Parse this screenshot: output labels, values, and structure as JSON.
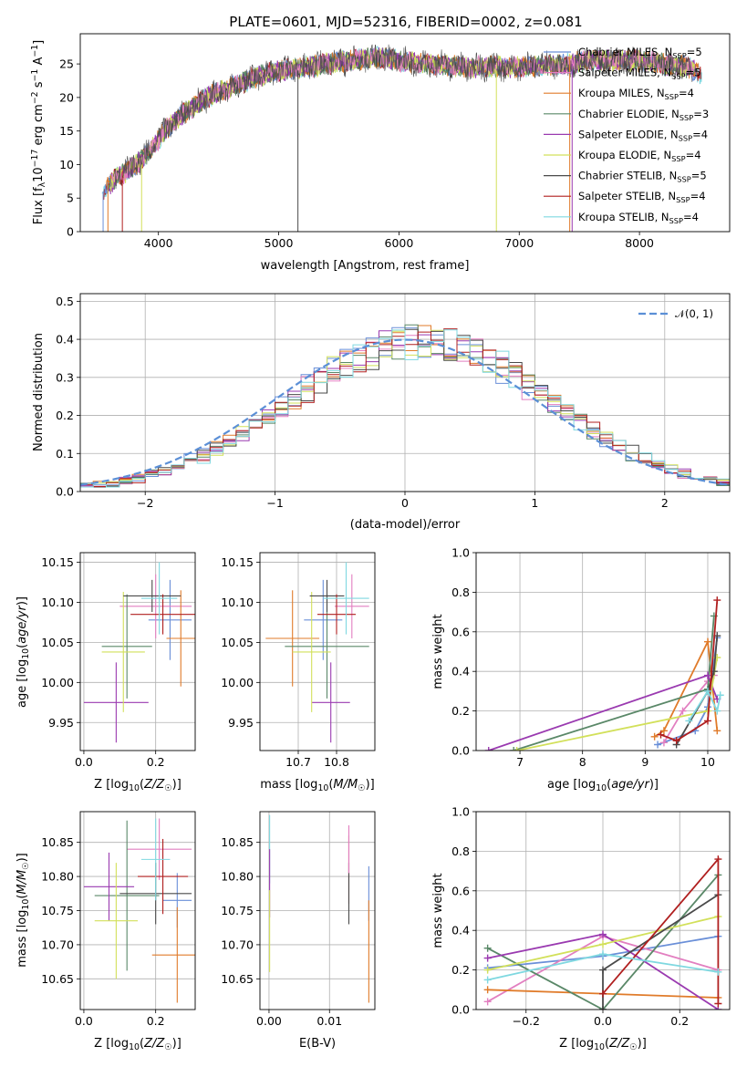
{
  "title": "PLATE=0601, MJD=52316, FIBERID=0002, z=0.081",
  "colors": {
    "Chabrier MILES": "#6a8fd8",
    "Salpeter MILES": "#e27fc0",
    "Kroupa MILES": "#e07b2a",
    "Chabrier ELODIE": "#5a8868",
    "Salpeter ELODIE": "#9a3ab0",
    "Kroupa ELODIE": "#d2e05a",
    "Chabrier STELIB": "#4a4a4a",
    "Salpeter STELIB": "#b01f1f",
    "Kroupa STELIB": "#7fd8e0"
  },
  "chart_data": [
    {
      "id": "spectrum",
      "type": "line",
      "xlabel": "wavelength [Angstrom, rest frame]",
      "ylabel": "Flux [f_λ 10^-17 erg cm^-2 s^-1 A^-1]",
      "xlim": [
        3350,
        8750
      ],
      "ylim": [
        0,
        29.5
      ],
      "xticks": [
        4000,
        5000,
        6000,
        7000,
        8000
      ],
      "yticks": [
        0,
        5,
        10,
        15,
        20,
        25
      ],
      "continuum": {
        "x": [
          3530,
          3650,
          3750,
          3850,
          3950,
          4050,
          4200,
          4400,
          4600,
          4800,
          5000,
          5200,
          5400,
          5600,
          5800,
          6000,
          6200,
          6400,
          6600,
          6800,
          7000,
          7200,
          7400,
          7600,
          7800,
          8000,
          8200,
          8400,
          8520
        ],
        "y": [
          6.0,
          8.0,
          9.2,
          10.5,
          12.5,
          15.0,
          17.5,
          20.0,
          21.5,
          23.0,
          24.0,
          24.5,
          25.0,
          25.5,
          26.0,
          25.5,
          25.0,
          24.8,
          24.5,
          24.6,
          24.5,
          24.8,
          25.0,
          25.5,
          25.5,
          25.5,
          25.0,
          24.5,
          23.5
        ]
      },
      "legend_loc": "right",
      "series": [
        {
          "name": "Chabrier MILES",
          "nssp": "5"
        },
        {
          "name": "Salpeter MILES",
          "nssp": "5"
        },
        {
          "name": "Kroupa MILES",
          "nssp": "4"
        },
        {
          "name": "Chabrier ELODIE",
          "nssp": "3"
        },
        {
          "name": "Salpeter ELODIE",
          "nssp": "4"
        },
        {
          "name": "Kroupa ELODIE",
          "nssp": "4"
        },
        {
          "name": "Chabrier STELIB",
          "nssp": "5"
        },
        {
          "name": "Salpeter STELIB",
          "nssp": "4"
        },
        {
          "name": "Kroupa STELIB",
          "nssp": "4"
        }
      ]
    },
    {
      "id": "residuals",
      "type": "line",
      "xlabel": "(data-model)/error",
      "ylabel": "Normed distribution",
      "xlim": [
        -2.5,
        2.5
      ],
      "ylim": [
        0,
        0.52
      ],
      "xticks": [
        -2,
        -1,
        0,
        1,
        2
      ],
      "yticks": [
        0.0,
        0.1,
        0.2,
        0.3,
        0.4,
        0.5
      ],
      "grid": true,
      "legend": "𝒩(0, 1)",
      "legend_loc": "top-right",
      "bin_width": 0.1
    },
    {
      "id": "age_vs_Z",
      "type": "scatter",
      "xlabel": "Z [log10(Z/Z☉)]",
      "ylabel": "age  [log10(age/yr)]",
      "xlim": [
        -0.01,
        0.31
      ],
      "ylim": [
        9.915,
        10.162
      ],
      "xticks": [
        0.0,
        0.2
      ],
      "yticks": [
        9.95,
        10.0,
        10.05,
        10.1,
        10.15
      ],
      "grid": true,
      "points": [
        {
          "series": "Chabrier MILES",
          "x": 0.24,
          "y": 10.078,
          "xerr": 0.06,
          "yerr": 0.05
        },
        {
          "series": "Salpeter MILES",
          "x": 0.2,
          "y": 10.095,
          "xerr": 0.1,
          "yerr": 0.04
        },
        {
          "series": "Kroupa MILES",
          "x": 0.27,
          "y": 10.055,
          "xerr": 0.04,
          "yerr": 0.06
        },
        {
          "series": "Chabrier ELODIE",
          "x": 0.12,
          "y": 10.045,
          "xerr": 0.07,
          "yerr": 0.065
        },
        {
          "series": "Salpeter ELODIE",
          "x": 0.09,
          "y": 9.975,
          "xerr": 0.09,
          "yerr": 0.05
        },
        {
          "series": "Kroupa ELODIE",
          "x": 0.11,
          "y": 10.038,
          "xerr": 0.06,
          "yerr": 0.075
        },
        {
          "series": "Chabrier STELIB",
          "x": 0.19,
          "y": 10.108,
          "xerr": 0.08,
          "yerr": 0.02
        },
        {
          "series": "Salpeter STELIB",
          "x": 0.22,
          "y": 10.085,
          "xerr": 0.09,
          "yerr": 0.025
        },
        {
          "series": "Kroupa STELIB",
          "x": 0.21,
          "y": 10.105,
          "xerr": 0.05,
          "yerr": 0.045
        }
      ]
    },
    {
      "id": "age_vs_mass",
      "type": "scatter",
      "xlabel": "mass [log10(M/M☉)]",
      "ylabel": "",
      "xlim": [
        10.6,
        10.9
      ],
      "ylim": [
        9.915,
        10.162
      ],
      "xticks": [
        10.7,
        10.8
      ],
      "yticks": [
        9.95,
        10.0,
        10.05,
        10.1,
        10.15
      ],
      "grid": true,
      "points": [
        {
          "series": "Chabrier MILES",
          "x": 10.765,
          "y": 10.078,
          "xerr": 0.05,
          "yerr": 0.05
        },
        {
          "series": "Salpeter MILES",
          "x": 10.84,
          "y": 10.095,
          "xerr": 0.045,
          "yerr": 0.04
        },
        {
          "series": "Kroupa MILES",
          "x": 10.685,
          "y": 10.055,
          "xerr": 0.07,
          "yerr": 0.06
        },
        {
          "series": "Chabrier ELODIE",
          "x": 10.775,
          "y": 10.045,
          "xerr": 0.11,
          "yerr": 0.065
        },
        {
          "series": "Salpeter ELODIE",
          "x": 10.785,
          "y": 9.975,
          "xerr": 0.05,
          "yerr": 0.05
        },
        {
          "series": "Kroupa ELODIE",
          "x": 10.735,
          "y": 10.038,
          "xerr": 0.05,
          "yerr": 0.075
        },
        {
          "series": "Chabrier STELIB",
          "x": 10.775,
          "y": 10.108,
          "xerr": 0.045,
          "yerr": 0.02
        },
        {
          "series": "Salpeter STELIB",
          "x": 10.8,
          "y": 10.085,
          "xerr": 0.05,
          "yerr": 0.025
        },
        {
          "series": "Kroupa STELIB",
          "x": 10.825,
          "y": 10.105,
          "xerr": 0.06,
          "yerr": 0.045
        }
      ]
    },
    {
      "id": "massweight_vs_age",
      "type": "line",
      "xlabel": "age  [log10(age/yr)]",
      "ylabel": "mass weight",
      "xlim": [
        6.3,
        10.35
      ],
      "ylim": [
        0,
        1.0
      ],
      "xticks": [
        7,
        8,
        9,
        10
      ],
      "yticks": [
        0.0,
        0.2,
        0.4,
        0.6,
        0.8,
        1.0
      ],
      "grid": true,
      "series": [
        {
          "name": "Chabrier MILES",
          "x": [
            9.2,
            9.8,
            10.0,
            10.15
          ],
          "y": [
            0.03,
            0.1,
            0.22,
            0.57
          ]
        },
        {
          "name": "Salpeter MILES",
          "x": [
            9.3,
            9.6,
            10.0,
            10.1
          ],
          "y": [
            0.04,
            0.2,
            0.35,
            0.38
          ]
        },
        {
          "name": "Kroupa MILES",
          "x": [
            9.15,
            9.3,
            10.0,
            10.15
          ],
          "y": [
            0.07,
            0.1,
            0.55,
            0.1
          ]
        },
        {
          "name": "Chabrier ELODIE",
          "x": [
            6.9,
            10.0,
            10.1
          ],
          "y": [
            0.0,
            0.31,
            0.68
          ]
        },
        {
          "name": "Salpeter ELODIE",
          "x": [
            6.5,
            10.0,
            10.15
          ],
          "y": [
            0.0,
            0.38,
            0.26
          ]
        },
        {
          "name": "Kroupa ELODIE",
          "x": [
            6.95,
            10.0,
            10.15
          ],
          "y": [
            0.0,
            0.2,
            0.47
          ]
        },
        {
          "name": "Chabrier STELIB",
          "x": [
            9.5,
            10.0,
            10.1,
            10.15
          ],
          "y": [
            0.03,
            0.3,
            0.4,
            0.58
          ]
        },
        {
          "name": "Salpeter STELIB",
          "x": [
            9.25,
            9.5,
            10.0,
            10.15
          ],
          "y": [
            0.08,
            0.05,
            0.15,
            0.76
          ]
        },
        {
          "name": "Kroupa STELIB",
          "x": [
            9.7,
            10.0,
            10.15,
            10.2
          ],
          "y": [
            0.15,
            0.3,
            0.2,
            0.28
          ]
        }
      ]
    },
    {
      "id": "mass_vs_Z",
      "type": "scatter",
      "xlabel": "Z [log10(Z/Z☉)]",
      "ylabel": "mass [log10(M/M☉)]",
      "xlim": [
        -0.01,
        0.31
      ],
      "ylim": [
        10.605,
        10.895
      ],
      "xticks": [
        0.0,
        0.2
      ],
      "yticks": [
        10.65,
        10.7,
        10.75,
        10.8,
        10.85
      ],
      "grid": true,
      "points": [
        {
          "series": "Chabrier MILES",
          "x": 0.26,
          "y": 10.765,
          "xerr": 0.04,
          "yerr": 0.04
        },
        {
          "series": "Salpeter MILES",
          "x": 0.21,
          "y": 10.84,
          "xerr": 0.09,
          "yerr": 0.045
        },
        {
          "series": "Kroupa MILES",
          "x": 0.26,
          "y": 10.685,
          "xerr": 0.07,
          "yerr": 0.07
        },
        {
          "series": "Chabrier ELODIE",
          "x": 0.12,
          "y": 10.772,
          "xerr": 0.09,
          "yerr": 0.11
        },
        {
          "series": "Salpeter ELODIE",
          "x": 0.07,
          "y": 10.785,
          "xerr": 0.07,
          "yerr": 0.05
        },
        {
          "series": "Kroupa ELODIE",
          "x": 0.09,
          "y": 10.735,
          "xerr": 0.06,
          "yerr": 0.085
        },
        {
          "series": "Chabrier STELIB",
          "x": 0.2,
          "y": 10.775,
          "xerr": 0.1,
          "yerr": 0.045
        },
        {
          "series": "Salpeter STELIB",
          "x": 0.22,
          "y": 10.8,
          "xerr": 0.07,
          "yerr": 0.055
        },
        {
          "series": "Kroupa STELIB",
          "x": 0.2,
          "y": 10.825,
          "xerr": 0.04,
          "yerr": 0.06
        }
      ]
    },
    {
      "id": "mass_vs_EBV",
      "type": "scatter",
      "xlabel": "E(B-V)",
      "ylabel": "",
      "xlim": [
        -0.0015,
        0.0175
      ],
      "ylim": [
        10.605,
        10.895
      ],
      "xticks": [
        0.0,
        0.01
      ],
      "yticks": [
        10.65,
        10.7,
        10.75,
        10.8,
        10.85
      ],
      "grid": true,
      "points": [
        {
          "series": "Chabrier MILES",
          "x": 0.0165,
          "y": 10.775,
          "xerr": 0,
          "yerr": 0.04
        },
        {
          "series": "Kroupa MILES",
          "x": 0.0165,
          "y": 10.69,
          "xerr": 0,
          "yerr": 0.075
        },
        {
          "series": "Salpeter STELIB",
          "x": 0.0132,
          "y": 10.81,
          "xerr": 0,
          "yerr": 0.05
        },
        {
          "series": "Chabrier STELIB",
          "x": 0.0132,
          "y": 10.775,
          "xerr": 0,
          "yerr": 0.045
        },
        {
          "series": "Salpeter MILES",
          "x": 0.0132,
          "y": 10.84,
          "xerr": 0,
          "yerr": 0.035
        },
        {
          "series": "Kroupa STELIB",
          "x": 0.0001,
          "y": 10.84,
          "xerr": 0,
          "yerr": 0.05
        },
        {
          "series": "Salpeter ELODIE",
          "x": 0.0001,
          "y": 10.79,
          "xerr": 0,
          "yerr": 0.05
        },
        {
          "series": "Kroupa ELODIE",
          "x": 0.0001,
          "y": 10.72,
          "xerr": 0,
          "yerr": 0.06
        }
      ]
    },
    {
      "id": "massweight_vs_Z",
      "type": "line",
      "xlabel": "Z [log10(Z/Z☉)]",
      "ylabel": "mass weight",
      "xlim": [
        -0.33,
        0.33
      ],
      "ylim": [
        0,
        1.0
      ],
      "xticks": [
        -0.2,
        0.0,
        0.2
      ],
      "yticks": [
        0.0,
        0.2,
        0.4,
        0.6,
        0.8,
        1.0
      ],
      "grid": true,
      "series": [
        {
          "name": "Chabrier MILES",
          "x": [
            -0.3,
            0.0,
            0.3
          ],
          "y": [
            0.21,
            0.27,
            0.37
          ]
        },
        {
          "name": "Salpeter MILES",
          "x": [
            -0.3,
            0.0,
            0.3
          ],
          "y": [
            0.04,
            0.37,
            0.2
          ]
        },
        {
          "name": "Kroupa MILES",
          "x": [
            -0.3,
            0.0,
            0.3
          ],
          "y": [
            0.1,
            0.08,
            0.06
          ]
        },
        {
          "name": "Chabrier ELODIE",
          "x": [
            -0.3,
            0.0,
            0.3
          ],
          "y": [
            0.31,
            0.0,
            0.68
          ]
        },
        {
          "name": "Salpeter ELODIE",
          "x": [
            -0.3,
            0.0,
            0.3
          ],
          "y": [
            0.26,
            0.38,
            0.0
          ]
        },
        {
          "name": "Kroupa ELODIE",
          "x": [
            -0.3,
            0.0,
            0.3
          ],
          "y": [
            0.2,
            0.33,
            0.47
          ]
        },
        {
          "name": "Chabrier STELIB",
          "x": [
            0.0,
            0.0,
            0.3
          ],
          "y": [
            0.0,
            0.2,
            0.58
          ]
        },
        {
          "name": "Salpeter STELIB",
          "x": [
            0.0,
            0.3,
            0.3
          ],
          "y": [
            0.08,
            0.76,
            0.03
          ]
        },
        {
          "name": "Kroupa STELIB",
          "x": [
            -0.3,
            0.0,
            0.3
          ],
          "y": [
            0.15,
            0.28,
            0.19
          ]
        }
      ]
    }
  ]
}
